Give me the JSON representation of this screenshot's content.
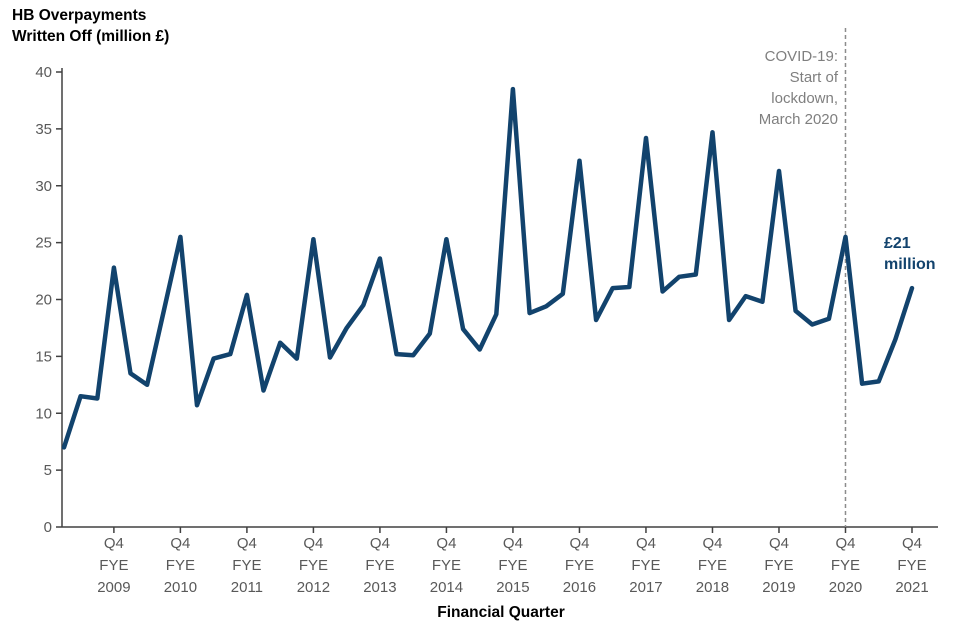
{
  "title": "HB Overpayments Written Off (million £)",
  "xlabel": "Financial Quarter",
  "annotations": {
    "covid_text": "COVID-19:\nStart of\nlockdown,\nMarch 2020",
    "end_label": "£21\nmillion"
  },
  "colors": {
    "line": "#12436D",
    "axis": "#404040",
    "tick_text": "#595959",
    "annotation_gray": "#7f7f7f"
  },
  "chart_data": {
    "type": "line",
    "title": "HB Overpayments Written Off (million £)",
    "xlabel": "Financial Quarter",
    "ylabel": "HB Overpayments Written Off (million £)",
    "ylim": [
      0,
      40
    ],
    "yticks": [
      0,
      5,
      10,
      15,
      20,
      25,
      30,
      35,
      40
    ],
    "grid": false,
    "legend": false,
    "x_unit": "financial quarter (Q1 FYE2009 - Q4 FYE2021)",
    "x_tick_labels": [
      "Q4 FYE 2009",
      "Q4 FYE 2010",
      "Q4 FYE 2011",
      "Q4 FYE 2012",
      "Q4 FYE 2013",
      "Q4 FYE 2014",
      "Q4 FYE 2015",
      "Q4 FYE 2016",
      "Q4 FYE 2017",
      "Q4 FYE 2018",
      "Q4 FYE 2019",
      "Q4 FYE 2020",
      "Q4 FYE 2021"
    ],
    "x_tick_indices": [
      3,
      7,
      11,
      15,
      19,
      23,
      27,
      31,
      35,
      39,
      43,
      47,
      51
    ],
    "series": [
      {
        "name": "HB Overpayments Written Off (million £)",
        "color": "#12436D",
        "values": [
          7.0,
          11.5,
          11.3,
          22.8,
          13.5,
          12.5,
          19.0,
          25.5,
          10.7,
          14.8,
          15.2,
          20.4,
          12.0,
          16.2,
          14.8,
          25.3,
          14.9,
          17.5,
          19.5,
          23.6,
          15.2,
          15.1,
          17.0,
          25.3,
          17.4,
          15.6,
          18.7,
          38.5,
          18.8,
          19.4,
          20.5,
          32.2,
          18.2,
          21.0,
          21.1,
          34.2,
          20.7,
          22.0,
          22.2,
          34.7,
          18.2,
          20.3,
          19.8,
          31.3,
          19.0,
          17.8,
          18.3,
          25.5,
          12.6,
          12.8,
          16.5,
          21.0
        ]
      }
    ],
    "annotations": [
      {
        "type": "vline",
        "x_index": 47,
        "style": "dashed",
        "color": "#8c8c8c",
        "label": "COVID-19: Start of lockdown, March 2020"
      },
      {
        "type": "data_label",
        "x_index": 51,
        "value": 21,
        "text": "£21 million",
        "color": "#12436D"
      }
    ]
  }
}
